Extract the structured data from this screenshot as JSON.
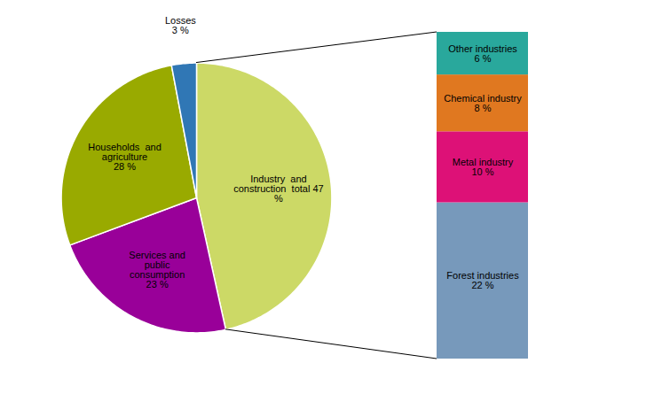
{
  "chart_data": [
    {
      "type": "pie",
      "categories": [
        "Industry  and\nconstruction  total 47\n%",
        "Services and\npublic\nconsumption\n23 %",
        "Households  and\nagriculture\n28 %",
        "Losses\n3 %"
      ],
      "values": [
        47,
        23,
        28,
        3
      ],
      "colors": [
        "#ccd966",
        "#990099",
        "#99aa00",
        "#3077b5"
      ]
    },
    {
      "type": "bar",
      "stacked": true,
      "categories": [
        "Forest industries\n22 %",
        "Metal industry\n10 %",
        "Chemical industry\n8 %",
        "Other industries\n6 %"
      ],
      "values": [
        22,
        10,
        8,
        6
      ],
      "colors": [
        "#7799bb",
        "#dd1177",
        "#e07820",
        "#29a89c"
      ],
      "ylim": [
        0,
        46
      ],
      "tick_labels": false
    }
  ]
}
